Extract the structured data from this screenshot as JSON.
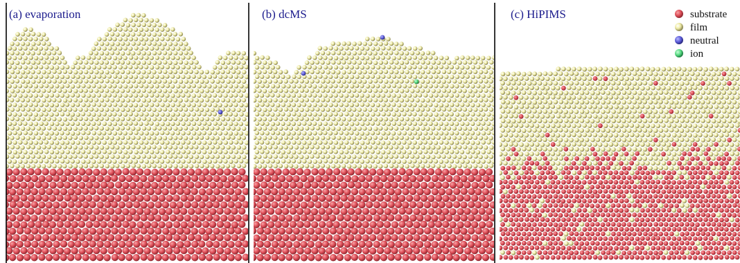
{
  "figure": {
    "panels": [
      {
        "id": "a",
        "title": "(a) evaporation"
      },
      {
        "id": "b",
        "title": "(b) dcMS"
      },
      {
        "id": "c",
        "title": "(c) HiPIMS"
      }
    ],
    "legend": [
      {
        "label": "substrate",
        "color": "#e0505a"
      },
      {
        "label": "film",
        "color": "#f3f0b4"
      },
      {
        "label": "neutral",
        "color": "#5a5ad6"
      },
      {
        "label": "ion",
        "color": "#52d67e"
      }
    ]
  }
}
